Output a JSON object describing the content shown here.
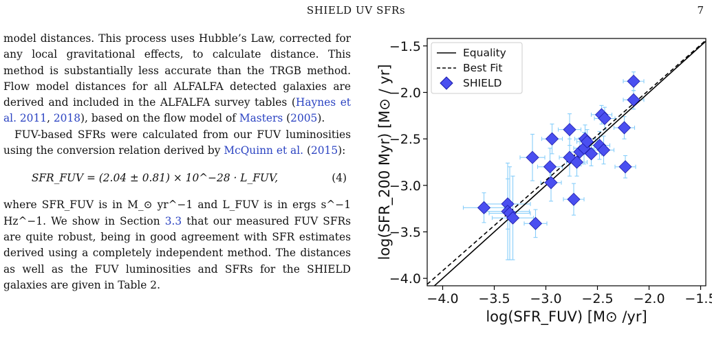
{
  "header": {
    "running_title": "SHIELD UV SFRs",
    "page_number": "7"
  },
  "text": {
    "p1": "model distances. This process uses Hubble’s Law, corrected for any local gravitational effects, to calculate distance. This method is substantially less accurate than the TRGB method. Flow model distances for all ALFALFA detected galaxies are derived and included in the ALFALFA survey tables (",
    "p1_cite1": "Haynes et al. 2011",
    "p1_sep": ", ",
    "p1_cite2": "2018",
    "p1_mid": "), based on the flow model of ",
    "p1_cite3": "Masters",
    "p1_cite3_open": " (",
    "p1_cite3_year": "2005",
    "p1_end": ").",
    "p2": "FUV-based SFRs were calculated from our FUV luminosities using the conversion relation derived by ",
    "p2_cite": "McQuinn et al.",
    "p2_cite_open": " (",
    "p2_cite_year": "2015",
    "p2_end": "):",
    "equation": "SFR_FUV = (2.04 ± 0.81) × 10^−28 · L_FUV,",
    "equation_number": "(4)",
    "p3a": "where SFR_FUV is in M_⊙ yr^−1 and L_FUV is in ergs s^−1 Hz^−1. We show in Section ",
    "p3_ref": "3.3",
    "p3b": " that our measured FUV SFRs are quite robust, being in good agreement with SFR estimates derived using a completely independent method. The distances as well as the FUV luminosities and SFRs for the SHIELD galaxies are given in Table 2."
  },
  "colors": {
    "marker_fill": "#4a4ff0",
    "marker_edge": "#1a1aa8",
    "errorbar": "#87cefa",
    "line": "#000000",
    "citation": "#2b43c2"
  },
  "chart_data": {
    "type": "scatter",
    "xlabel": "log(SFR_FUV) [M⊙ /yr]",
    "ylabel": "log(SFR_200 Myr) [M⊙ / yr]",
    "xlim": [
      -4.15,
      -1.45
    ],
    "ylim": [
      -4.08,
      -1.42
    ],
    "xticks": [
      "−4.0",
      "−3.5",
      "−3.0",
      "−2.5",
      "−2.0",
      "−1.5"
    ],
    "yticks": [
      "−4.0",
      "−3.5",
      "−3.0",
      "−2.5",
      "−2.0",
      "−1.5"
    ],
    "xtick_values": [
      -4.0,
      -3.5,
      -3.0,
      -2.5,
      -2.0,
      -1.5
    ],
    "ytick_values": [
      -4.0,
      -3.5,
      -3.0,
      -2.5,
      -2.0,
      -1.5
    ],
    "legend": {
      "position": "top-left",
      "entries": [
        "Equality",
        "Best Fit",
        "SHIELD"
      ]
    },
    "lines": [
      {
        "name": "Equality",
        "style": "solid",
        "slope": 1.0,
        "intercept": 0.0
      },
      {
        "name": "Best Fit",
        "style": "dashed",
        "slope": 0.972,
        "intercept": -0.03
      }
    ],
    "series": [
      {
        "name": "SHIELD",
        "marker": "diamond",
        "points": [
          {
            "x": -3.6,
            "y": -3.24,
            "xerr": 0.2,
            "yerr": 0.16
          },
          {
            "x": -3.37,
            "y": -3.2,
            "xerr": 0.22,
            "yerr": 0.27
          },
          {
            "x": -3.37,
            "y": -3.28,
            "xerr": 0.21,
            "yerr": 0.52
          },
          {
            "x": -3.35,
            "y": -3.3,
            "xerr": 0.2,
            "yerr": 0.5
          },
          {
            "x": -3.32,
            "y": -3.35,
            "xerr": 0.2,
            "yerr": 0.45
          },
          {
            "x": -3.1,
            "y": -3.41,
            "xerr": 0.11,
            "yerr": 0.15
          },
          {
            "x": -3.13,
            "y": -2.7,
            "xerr": 0.12,
            "yerr": 0.25
          },
          {
            "x": -2.96,
            "y": -2.8,
            "xerr": 0.12,
            "yerr": 0.2
          },
          {
            "x": -2.95,
            "y": -2.97,
            "xerr": 0.1,
            "yerr": 0.2
          },
          {
            "x": -2.94,
            "y": -2.5,
            "xerr": 0.1,
            "yerr": 0.16
          },
          {
            "x": -2.77,
            "y": -2.4,
            "xerr": 0.11,
            "yerr": 0.17
          },
          {
            "x": -2.77,
            "y": -2.7,
            "xerr": 0.1,
            "yerr": 0.2
          },
          {
            "x": -2.73,
            "y": -3.15,
            "xerr": 0.1,
            "yerr": 0.17
          },
          {
            "x": -2.7,
            "y": -2.75,
            "xerr": 0.1,
            "yerr": 0.15
          },
          {
            "x": -2.67,
            "y": -2.64,
            "xerr": 0.1,
            "yerr": 0.15
          },
          {
            "x": -2.63,
            "y": -2.6,
            "xerr": 0.1,
            "yerr": 0.17
          },
          {
            "x": -2.62,
            "y": -2.5,
            "xerr": 0.1,
            "yerr": 0.15
          },
          {
            "x": -2.6,
            "y": -2.53,
            "xerr": 0.1,
            "yerr": 0.13
          },
          {
            "x": -2.56,
            "y": -2.66,
            "xerr": 0.1,
            "yerr": 0.13
          },
          {
            "x": -2.48,
            "y": -2.57,
            "xerr": 0.1,
            "yerr": 0.15
          },
          {
            "x": -2.46,
            "y": -2.24,
            "xerr": 0.1,
            "yerr": 0.1
          },
          {
            "x": -2.43,
            "y": -2.28,
            "xerr": 0.1,
            "yerr": 0.12
          },
          {
            "x": -2.44,
            "y": -2.62,
            "xerr": 0.1,
            "yerr": 0.15
          },
          {
            "x": -2.24,
            "y": -2.38,
            "xerr": 0.1,
            "yerr": 0.12
          },
          {
            "x": -2.23,
            "y": -2.8,
            "xerr": 0.1,
            "yerr": 0.12
          },
          {
            "x": -2.15,
            "y": -1.88,
            "xerr": 0.1,
            "yerr": 0.1
          },
          {
            "x": -2.15,
            "y": -2.08,
            "xerr": 0.1,
            "yerr": 0.1
          }
        ]
      }
    ]
  }
}
